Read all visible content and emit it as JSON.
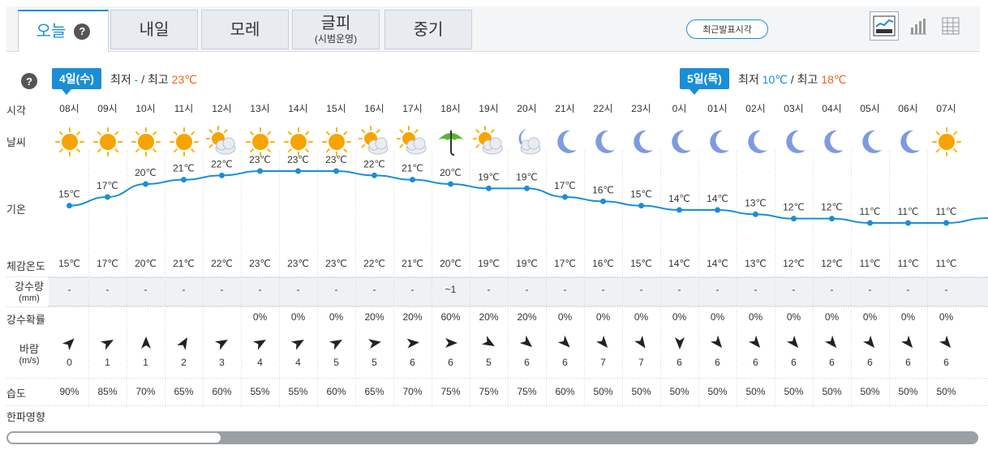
{
  "tabs": [
    {
      "label": "오늘",
      "sub": "",
      "active": true
    },
    {
      "label": "내일",
      "sub": "",
      "active": false
    },
    {
      "label": "모레",
      "sub": "",
      "active": false
    },
    {
      "label": "글피",
      "sub": "(시범운영)",
      "active": false
    },
    {
      "label": "중기",
      "sub": "",
      "active": false
    }
  ],
  "help_glyph": "?",
  "recent_button": "최근발표시각",
  "days": [
    {
      "badge": "4일(수)",
      "min_label": "최저",
      "min": "-",
      "sep": "/",
      "max_label": "최고",
      "max": "23℃"
    },
    {
      "badge": "5일(목)",
      "min_label": "최저",
      "min": "10℃",
      "sep": "/",
      "max_label": "최고",
      "max": "18℃"
    }
  ],
  "row_labels": {
    "time": "시각",
    "weather": "날씨",
    "temp": "기온",
    "feels": "체감온도",
    "precip": "강수량",
    "precip_unit": "(mm)",
    "prob": "강수확률",
    "wind": "바람",
    "wind_unit": "(m/s)",
    "humid": "습도",
    "cold": "한파영향"
  },
  "hours": [
    {
      "time": "08시",
      "icon": "sun",
      "temp": 15,
      "temp_label": "15℃",
      "feels": "15℃",
      "precip": "-",
      "prob": "",
      "wind_dir": 45,
      "wind": "0",
      "humid": "90%"
    },
    {
      "time": "09시",
      "icon": "sun",
      "temp": 17,
      "temp_label": "17℃",
      "feels": "17℃",
      "precip": "-",
      "prob": "",
      "wind_dir": 60,
      "wind": "1",
      "humid": "85%"
    },
    {
      "time": "10시",
      "icon": "sun",
      "temp": 20,
      "temp_label": "20℃",
      "feels": "20℃",
      "precip": "-",
      "prob": "",
      "wind_dir": 0,
      "wind": "1",
      "humid": "70%"
    },
    {
      "time": "11시",
      "icon": "sun",
      "temp": 21,
      "temp_label": "21℃",
      "feels": "21℃",
      "precip": "-",
      "prob": "",
      "wind_dir": 30,
      "wind": "2",
      "humid": "65%"
    },
    {
      "time": "12시",
      "icon": "sun-cloud",
      "temp": 22,
      "temp_label": "22℃",
      "feels": "22℃",
      "precip": "-",
      "prob": "",
      "wind_dir": 60,
      "wind": "3",
      "humid": "60%"
    },
    {
      "time": "13시",
      "icon": "sun",
      "temp": 23,
      "temp_label": "23℃",
      "feels": "23℃",
      "precip": "-",
      "prob": "0%",
      "wind_dir": 60,
      "wind": "4",
      "humid": "55%"
    },
    {
      "time": "14시",
      "icon": "sun",
      "temp": 23,
      "temp_label": "23℃",
      "feels": "23℃",
      "precip": "-",
      "prob": "0%",
      "wind_dir": 60,
      "wind": "4",
      "humid": "55%"
    },
    {
      "time": "15시",
      "icon": "sun",
      "temp": 23,
      "temp_label": "23℃",
      "feels": "23℃",
      "precip": "-",
      "prob": "0%",
      "wind_dir": 60,
      "wind": "5",
      "humid": "60%"
    },
    {
      "time": "16시",
      "icon": "sun-cloud",
      "temp": 22,
      "temp_label": "22℃",
      "feels": "22℃",
      "precip": "-",
      "prob": "20%",
      "wind_dir": 80,
      "wind": "5",
      "humid": "65%"
    },
    {
      "time": "17시",
      "icon": "sun-cloud",
      "temp": 21,
      "temp_label": "21℃",
      "feels": "21℃",
      "precip": "-",
      "prob": "20%",
      "wind_dir": 85,
      "wind": "6",
      "humid": "70%"
    },
    {
      "time": "18시",
      "icon": "umbrella",
      "temp": 20,
      "temp_label": "20℃",
      "feels": "20℃",
      "precip": "~1",
      "prob": "60%",
      "wind_dir": 90,
      "wind": "6",
      "humid": "75%"
    },
    {
      "time": "19시",
      "icon": "sun-cloud",
      "temp": 19,
      "temp_label": "19℃",
      "feels": "19℃",
      "precip": "-",
      "prob": "20%",
      "wind_dir": 120,
      "wind": "5",
      "humid": "75%"
    },
    {
      "time": "20시",
      "icon": "moon-cloud",
      "temp": 19,
      "temp_label": "19℃",
      "feels": "19℃",
      "precip": "-",
      "prob": "20%",
      "wind_dir": 130,
      "wind": "6",
      "humid": "75%"
    },
    {
      "time": "21시",
      "icon": "moon",
      "temp": 17,
      "temp_label": "17℃",
      "feels": "17℃",
      "precip": "-",
      "prob": "0%",
      "wind_dir": 135,
      "wind": "6",
      "humid": "60%"
    },
    {
      "time": "22시",
      "icon": "moon",
      "temp": 16,
      "temp_label": "16℃",
      "feels": "16℃",
      "precip": "-",
      "prob": "0%",
      "wind_dir": 140,
      "wind": "7",
      "humid": "50%"
    },
    {
      "time": "23시",
      "icon": "moon",
      "temp": 15,
      "temp_label": "15℃",
      "feels": "15℃",
      "precip": "-",
      "prob": "0%",
      "wind_dir": 145,
      "wind": "7",
      "humid": "50%"
    },
    {
      "time": "0시",
      "icon": "moon",
      "temp": 14,
      "temp_label": "14℃",
      "feels": "14℃",
      "precip": "-",
      "prob": "0%",
      "wind_dir": 180,
      "wind": "6",
      "humid": "50%"
    },
    {
      "time": "01시",
      "icon": "moon",
      "temp": 14,
      "temp_label": "14℃",
      "feels": "14℃",
      "precip": "-",
      "prob": "0%",
      "wind_dir": 140,
      "wind": "6",
      "humid": "50%"
    },
    {
      "time": "02시",
      "icon": "moon",
      "temp": 13,
      "temp_label": "13℃",
      "feels": "13℃",
      "precip": "-",
      "prob": "0%",
      "wind_dir": 140,
      "wind": "6",
      "humid": "50%"
    },
    {
      "time": "03시",
      "icon": "moon",
      "temp": 12,
      "temp_label": "12℃",
      "feels": "12℃",
      "precip": "-",
      "prob": "0%",
      "wind_dir": 140,
      "wind": "6",
      "humid": "50%"
    },
    {
      "time": "04시",
      "icon": "moon",
      "temp": 12,
      "temp_label": "12℃",
      "feels": "12℃",
      "precip": "-",
      "prob": "0%",
      "wind_dir": 140,
      "wind": "6",
      "humid": "50%"
    },
    {
      "time": "05시",
      "icon": "moon",
      "temp": 11,
      "temp_label": "11℃",
      "feels": "11℃",
      "precip": "-",
      "prob": "0%",
      "wind_dir": 140,
      "wind": "6",
      "humid": "50%"
    },
    {
      "time": "06시",
      "icon": "moon",
      "temp": 11,
      "temp_label": "11℃",
      "feels": "11℃",
      "precip": "-",
      "prob": "0%",
      "wind_dir": 140,
      "wind": "6",
      "humid": "50%"
    },
    {
      "time": "07시",
      "icon": "sun",
      "temp": 11,
      "temp_label": "11℃",
      "feels": "11℃",
      "precip": "-",
      "prob": "0%",
      "wind_dir": 140,
      "wind": "6",
      "humid": "50%"
    }
  ],
  "colors": {
    "accent": "#1a8ed6",
    "hi": "#e8651a",
    "line": "#1a8ed6"
  }
}
